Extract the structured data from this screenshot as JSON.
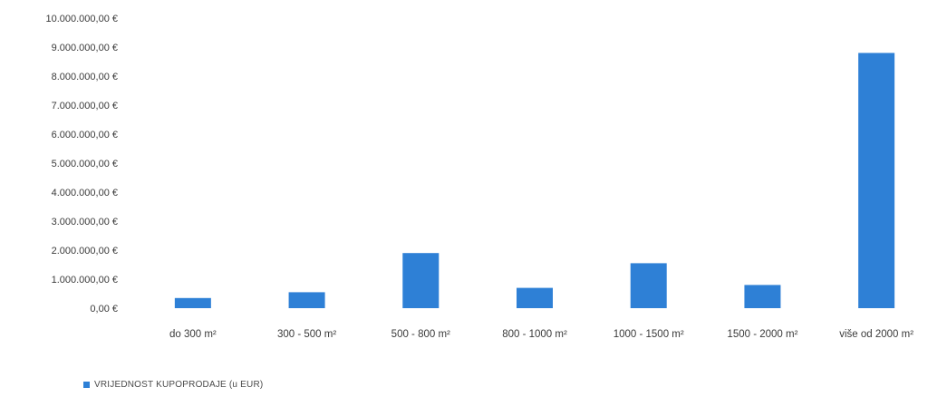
{
  "chart_data": {
    "type": "bar",
    "categories": [
      "do 300 m²",
      "300 - 500 m²",
      "500 - 800 m²",
      "800 - 1000 m²",
      "1000 - 1500 m²",
      "1500 - 2000 m²",
      "više od 2000 m²"
    ],
    "series": [
      {
        "name": "VRIJEDNOST KUPOPRODAJE (u EUR)",
        "values": [
          350000,
          550000,
          1900000,
          700000,
          1550000,
          800000,
          8800000
        ],
        "color": "#2e80d6"
      }
    ],
    "y_ticks": [
      "0,00 €",
      "1.000.000,00 €",
      "2.000.000,00 €",
      "3.000.000,00 €",
      "4.000.000,00 €",
      "5.000.000,00 €",
      "6.000.000,00 €",
      "7.000.000,00 €",
      "8.000.000,00 €",
      "9.000.000,00 €",
      "10.000.000,00 €"
    ],
    "ylim": [
      0,
      10000000
    ],
    "grid": false,
    "legend_position": "bottom-left",
    "title": "",
    "xlabel": "",
    "ylabel": ""
  }
}
